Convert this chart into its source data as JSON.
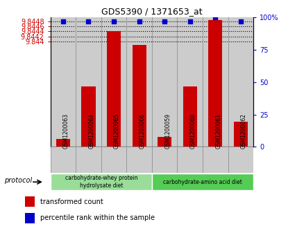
{
  "title": "GDS5390 / 1371653_at",
  "samples": [
    "GSM1200063",
    "GSM1200064",
    "GSM1200065",
    "GSM1200066",
    "GSM1200059",
    "GSM1200060",
    "GSM1200061",
    "GSM1200062"
  ],
  "transformed_counts": [
    9.8401,
    9.8422,
    9.8444,
    9.84385,
    9.8402,
    9.8422,
    9.84485,
    9.8408
  ],
  "percentile_ranks": [
    97,
    97,
    97,
    97,
    97,
    97,
    100,
    97
  ],
  "ylim_left": [
    9.8398,
    9.84495
  ],
  "ylim_right": [
    0,
    100
  ],
  "yticks_left": [
    9.844,
    9.8442,
    9.8444,
    9.8446,
    9.8448
  ],
  "yticks_right": [
    0,
    25,
    50,
    75,
    100
  ],
  "bar_color": "#cc0000",
  "dot_color": "#0000cc",
  "group1_label": "carbohydrate-whey protein\nhydrolysate diet",
  "group2_label": "carbohydrate-amino acid diet",
  "group1_color": "#99dd99",
  "group2_color": "#55cc55",
  "group1_indices": [
    0,
    1,
    2,
    3
  ],
  "group2_indices": [
    4,
    5,
    6,
    7
  ],
  "legend_bar_label": "transformed count",
  "legend_dot_label": "percentile rank within the sample",
  "protocol_label": "protocol",
  "base_value": 9.8398,
  "col_bg_color": "#cccccc",
  "separator_color": "#999999",
  "dot_size": 18,
  "bar_width": 0.55
}
